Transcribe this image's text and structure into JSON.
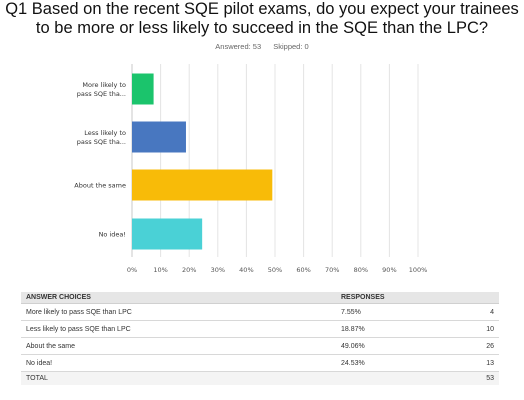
{
  "question": {
    "line1": "Q1 Based on the recent SQE pilot exams, do you expect your trainees",
    "line2": "to be more or less likely to succeed in the SQE than the LPC?"
  },
  "answered_label": "Answered: 53",
  "skipped_label": "Skipped: 0",
  "chart_data": {
    "type": "bar",
    "orientation": "horizontal",
    "categories": [
      [
        "More likely to",
        "pass SQE tha..."
      ],
      [
        "Less likely to",
        "pass SQE tha..."
      ],
      [
        "About the same"
      ],
      [
        "No idea!"
      ]
    ],
    "values": [
      7.55,
      18.87,
      49.06,
      24.53
    ],
    "colors": [
      "#1bc46c",
      "#4877c0",
      "#f8bb08",
      "#4ad1d6"
    ],
    "x_ticks": [
      "0%",
      "10%",
      "20%",
      "30%",
      "40%",
      "50%",
      "60%",
      "70%",
      "80%",
      "90%",
      "100%"
    ],
    "xlim": [
      0,
      100
    ],
    "grid": true
  },
  "table": {
    "headers": {
      "choice": "ANSWER CHOICES",
      "responses": "RESPONSES"
    },
    "rows": [
      {
        "choice": "More likely to pass SQE than LPC",
        "pct": "7.55%",
        "count": "4"
      },
      {
        "choice": "Less likely to pass SQE than LPC",
        "pct": "18.87%",
        "count": "10"
      },
      {
        "choice": "About the same",
        "pct": "49.06%",
        "count": "26"
      },
      {
        "choice": "No idea!",
        "pct": "24.53%",
        "count": "13"
      }
    ],
    "total": {
      "label": "TOTAL",
      "count": "53"
    }
  }
}
